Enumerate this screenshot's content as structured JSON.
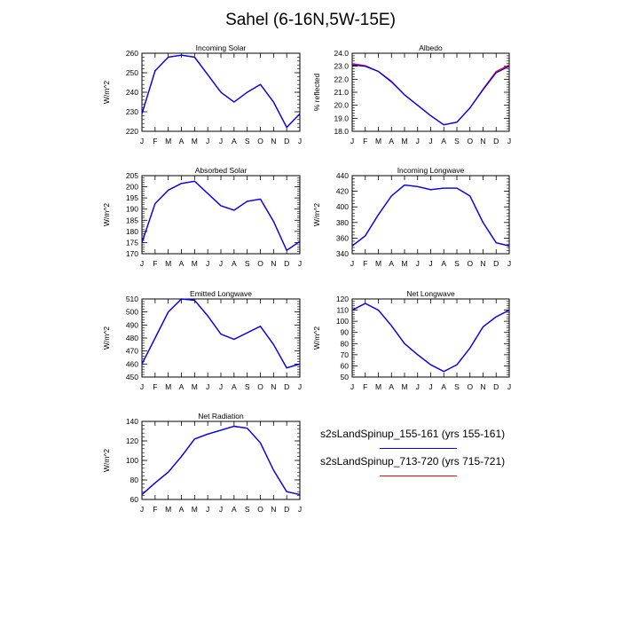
{
  "title": "Sahel (6-16N,5W-15E)",
  "colors": {
    "run1": "#0000ff",
    "run2": "#ff0000",
    "axis": "#000000"
  },
  "legend": [
    {
      "label": "s2sLandSpinup_155-161 (yrs 155-161)",
      "color": "#0000ff"
    },
    {
      "label": "s2sLandSpinup_713-720 (yrs 715-721)",
      "color": "#ff0000"
    }
  ],
  "chart_data": [
    {
      "type": "line",
      "title": "Incoming Solar",
      "ylabel": "W/m^2",
      "categories": [
        "J",
        "F",
        "M",
        "A",
        "M",
        "J",
        "J",
        "A",
        "S",
        "O",
        "N",
        "D",
        "J"
      ],
      "ylim": [
        220,
        260
      ],
      "yticks": [
        "220",
        "230",
        "240",
        "250",
        "260"
      ],
      "ystep_minor": 2,
      "series": [
        {
          "name": "s2sLandSpinup_155-161 (yrs 155-161)",
          "values": [
            229,
            251,
            258,
            259,
            258,
            249,
            240,
            235,
            240,
            244,
            235,
            222,
            229
          ]
        },
        {
          "name": "s2sLandSpinup_713-720 (yrs 715-721)",
          "values": [
            229,
            251,
            258,
            259,
            258,
            249,
            240,
            235,
            240,
            244,
            235,
            222,
            229
          ]
        }
      ]
    },
    {
      "type": "line",
      "title": "Albedo",
      "ylabel": "% reflected",
      "categories": [
        "J",
        "F",
        "M",
        "A",
        "M",
        "J",
        "J",
        "A",
        "S",
        "O",
        "N",
        "D",
        "J"
      ],
      "ylim": [
        18,
        24
      ],
      "yticks": [
        "18.0",
        "19.0",
        "20.0",
        "21.0",
        "22.0",
        "23.0",
        "24.0"
      ],
      "ystep_minor": 0.2,
      "series": [
        {
          "name": "s2sLandSpinup_155-161 (yrs 155-161)",
          "values": [
            23.1,
            23.0,
            22.6,
            21.8,
            20.8,
            20.0,
            19.2,
            18.5,
            18.7,
            19.8,
            21.2,
            22.5,
            23.0
          ]
        },
        {
          "name": "s2sLandSpinup_713-720 (yrs 715-721)",
          "values": [
            23.2,
            23.05,
            22.6,
            21.85,
            20.8,
            20.0,
            19.2,
            18.5,
            18.7,
            19.8,
            21.25,
            22.6,
            23.1
          ]
        }
      ]
    },
    {
      "type": "line",
      "title": "Absorbed Solar",
      "ylabel": "W/m^2",
      "categories": [
        "J",
        "F",
        "M",
        "A",
        "M",
        "J",
        "J",
        "A",
        "S",
        "O",
        "N",
        "D",
        "J"
      ],
      "ylim": [
        170,
        205
      ],
      "yticks": [
        "170",
        "175",
        "180",
        "185",
        "190",
        "195",
        "200",
        "205"
      ],
      "ystep_minor": 1,
      "series": [
        {
          "name": "s2sLandSpinup_155-161 (yrs 155-161)",
          "values": [
            175,
            192.5,
            198.5,
            201.5,
            202.5,
            197,
            191.5,
            189.5,
            193.5,
            194.5,
            184.5,
            171.5,
            175.5
          ]
        },
        {
          "name": "s2sLandSpinup_713-720 (yrs 715-721)",
          "values": [
            175,
            192.5,
            198.5,
            201.5,
            202.5,
            197,
            191.5,
            189.5,
            193.5,
            194.5,
            184.5,
            171.5,
            175.5
          ]
        }
      ]
    },
    {
      "type": "line",
      "title": "Incoming Longwave",
      "ylabel": "W/m^2",
      "categories": [
        "J",
        "F",
        "M",
        "A",
        "M",
        "J",
        "J",
        "A",
        "S",
        "O",
        "N",
        "D",
        "J"
      ],
      "ylim": [
        340,
        440
      ],
      "yticks": [
        "340",
        "360",
        "380",
        "400",
        "420",
        "440"
      ],
      "ystep_minor": 4,
      "series": [
        {
          "name": "s2sLandSpinup_155-161 (yrs 155-161)",
          "values": [
            350,
            363,
            390,
            414,
            428,
            426,
            422,
            424,
            424,
            414,
            380,
            354,
            350
          ]
        },
        {
          "name": "s2sLandSpinup_713-720 (yrs 715-721)",
          "values": [
            350,
            363,
            390,
            414,
            428,
            426,
            422,
            424,
            424,
            414,
            380,
            354,
            350
          ]
        }
      ]
    },
    {
      "type": "line",
      "title": "Emitted Longwave",
      "ylabel": "W/m^2",
      "categories": [
        "J",
        "F",
        "M",
        "A",
        "M",
        "J",
        "J",
        "A",
        "S",
        "O",
        "N",
        "D",
        "J"
      ],
      "ylim": [
        450,
        510
      ],
      "yticks": [
        "450",
        "460",
        "470",
        "480",
        "490",
        "500",
        "510"
      ],
      "ystep_minor": 2,
      "series": [
        {
          "name": "s2sLandSpinup_155-161 (yrs 155-161)",
          "values": [
            460,
            480,
            500,
            510,
            509,
            497,
            483,
            479,
            484,
            489,
            475,
            457,
            460
          ]
        },
        {
          "name": "s2sLandSpinup_713-720 (yrs 715-721)",
          "values": [
            460,
            480,
            500,
            510,
            509,
            497,
            483,
            479,
            484,
            489,
            475,
            457,
            460
          ]
        }
      ]
    },
    {
      "type": "line",
      "title": "Net Longwave",
      "ylabel": "W/m^2",
      "categories": [
        "J",
        "F",
        "M",
        "A",
        "M",
        "J",
        "J",
        "A",
        "S",
        "O",
        "N",
        "D",
        "J"
      ],
      "ylim": [
        50,
        120
      ],
      "yticks": [
        "50",
        "60",
        "70",
        "80",
        "90",
        "100",
        "110",
        "120"
      ],
      "ystep_minor": 2,
      "series": [
        {
          "name": "s2sLandSpinup_155-161 (yrs 155-161)",
          "values": [
            110,
            116,
            110,
            96,
            80,
            70,
            61,
            55,
            61,
            76,
            95,
            104,
            110
          ]
        },
        {
          "name": "s2sLandSpinup_713-720 (yrs 715-721)",
          "values": [
            110,
            116,
            110,
            96,
            80,
            70,
            61,
            55,
            61,
            76,
            95,
            104,
            110
          ]
        }
      ]
    },
    {
      "type": "line",
      "title": "Net Radiation",
      "ylabel": "W/m^2",
      "categories": [
        "J",
        "F",
        "M",
        "A",
        "M",
        "J",
        "J",
        "A",
        "S",
        "O",
        "N",
        "D",
        "J"
      ],
      "ylim": [
        60,
        140
      ],
      "yticks": [
        "60",
        "80",
        "100",
        "120",
        "140"
      ],
      "ystep_minor": 4,
      "series": [
        {
          "name": "s2sLandSpinup_155-161 (yrs 155-161)",
          "values": [
            65,
            77,
            88,
            104,
            122,
            127,
            131,
            135,
            133,
            118,
            90,
            68,
            65
          ]
        },
        {
          "name": "s2sLandSpinup_713-720 (yrs 715-721)",
          "values": [
            65,
            77,
            88,
            104,
            122,
            127,
            131,
            135,
            133,
            118,
            90,
            68,
            65
          ]
        }
      ]
    }
  ]
}
